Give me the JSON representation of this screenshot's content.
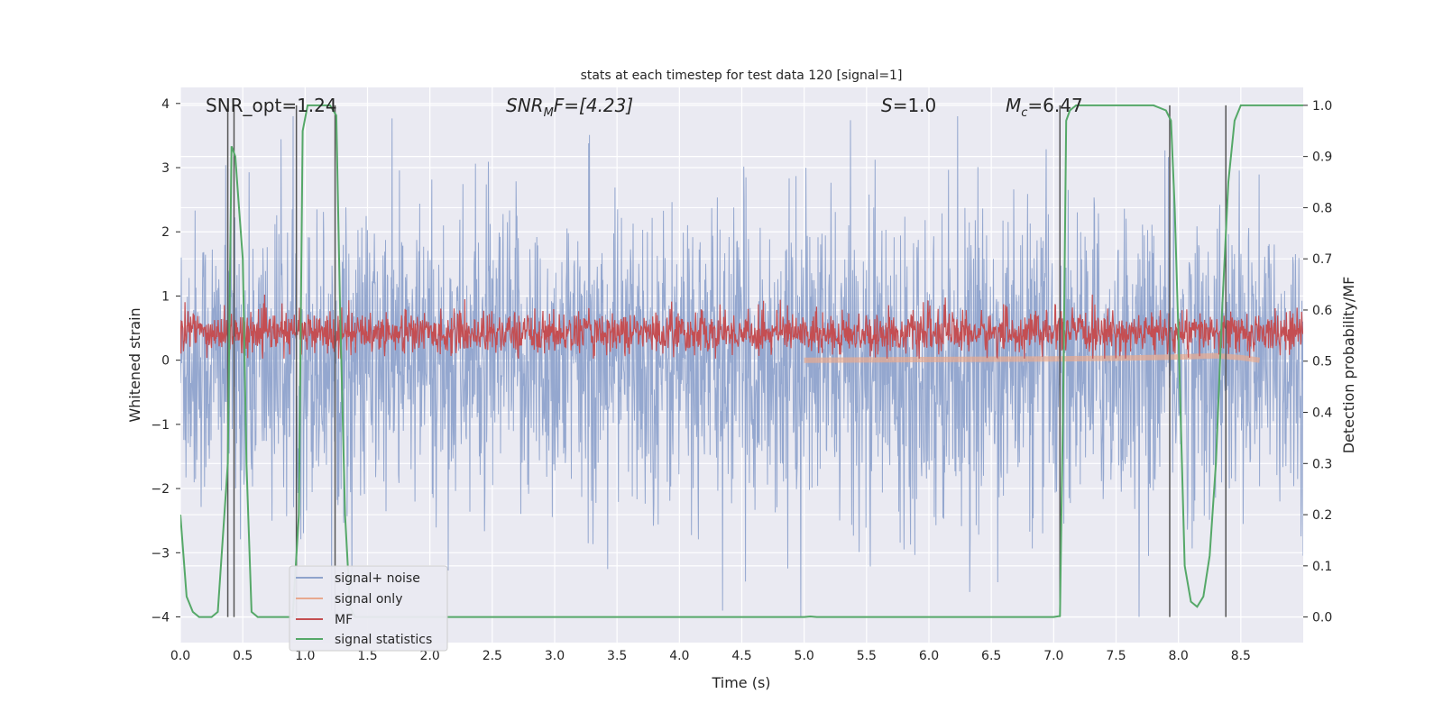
{
  "chart_data": {
    "type": "line",
    "title": "stats at each timestep for test data 120 [signal=1]",
    "xlabel": "Time (s)",
    "ylabel": "Whitened strain",
    "y2label": "Detection probability/MF",
    "xlim": [
      0.0,
      9.0
    ],
    "ylim": [
      -4.4,
      4.25
    ],
    "y2lim": [
      -0.05,
      1.035
    ],
    "xticks": [
      "0.0",
      "0.5",
      "1.0",
      "1.5",
      "2.0",
      "2.5",
      "3.0",
      "3.5",
      "4.0",
      "4.5",
      "5.0",
      "5.5",
      "6.0",
      "6.5",
      "7.0",
      "7.5",
      "8.0",
      "8.5"
    ],
    "yticks": [
      "4",
      "3",
      "2",
      "1",
      "0",
      "−1",
      "−2",
      "−3",
      "−4"
    ],
    "y2ticks": [
      "1.0",
      "0.9",
      "0.8",
      "0.7",
      "0.6",
      "0.5",
      "0.4",
      "0.3",
      "0.2",
      "0.1",
      "0.0"
    ],
    "grid": true,
    "legend_position": "lower-left",
    "annotations": {
      "snr_opt": "SNR_opt=1.24",
      "snr_mf_main": "SNR",
      "snr_mf_sub": "M",
      "snr_mf_rest": "F=[4.23]",
      "s_main": "S",
      "s_rest": "=1.0",
      "mc_main": "M",
      "mc_sub": "c",
      "mc_rest": "=6.47"
    },
    "series": [
      {
        "name": "signal+ noise",
        "color": "#8fa3cc",
        "axis": "left",
        "description": "whitened strain noise, roughly ±2.5 with spikes to ±3.5"
      },
      {
        "name": "signal only",
        "color": "#e8a98f",
        "axis": "left",
        "x": [
          5.0,
          7.0,
          7.5,
          8.0,
          8.3,
          8.5,
          8.65
        ],
        "y": [
          0.0,
          0.02,
          0.03,
          0.05,
          0.07,
          0.04,
          0.0
        ]
      },
      {
        "name": "MF",
        "color": "#c44e52",
        "axis": "right",
        "description": "matched filter output, roughly 0.5–0.6 on the right axis"
      },
      {
        "name": "signal statistics",
        "color": "#55a868",
        "axis": "right",
        "x": [
          0.0,
          0.05,
          0.1,
          0.15,
          0.2,
          0.25,
          0.3,
          0.38,
          0.41,
          0.44,
          0.47,
          0.5,
          0.53,
          0.57,
          0.62,
          0.7,
          0.8,
          0.9,
          0.95,
          0.98,
          1.02,
          1.07,
          1.15,
          1.2,
          1.25,
          1.28,
          1.32,
          1.36,
          1.4,
          1.45,
          1.5,
          2.0,
          3.0,
          4.0,
          5.0,
          5.05,
          5.1,
          5.2,
          6.0,
          7.0,
          7.05,
          7.08,
          7.1,
          7.13,
          7.18,
          7.25,
          7.5,
          7.8,
          7.9,
          7.94,
          7.97,
          8.0,
          8.05,
          8.1,
          8.15,
          8.2,
          8.25,
          8.3,
          8.35,
          8.4,
          8.45,
          8.5,
          8.6,
          8.8,
          9.0
        ],
        "y": [
          0.2,
          0.04,
          0.01,
          0.0,
          0.0,
          0.0,
          0.01,
          0.3,
          0.92,
          0.9,
          0.8,
          0.7,
          0.3,
          0.01,
          0.0,
          0.0,
          0.0,
          0.0,
          0.2,
          0.95,
          1.0,
          1.0,
          1.0,
          1.0,
          0.98,
          0.6,
          0.2,
          0.02,
          0.0,
          0.0,
          0.0,
          0.0,
          0.0,
          0.0,
          0.0,
          0.001,
          0.0,
          0.0,
          0.0,
          0.0,
          0.002,
          0.5,
          0.97,
          0.99,
          1.0,
          1.0,
          1.0,
          1.0,
          0.99,
          0.97,
          0.8,
          0.55,
          0.1,
          0.03,
          0.02,
          0.04,
          0.12,
          0.3,
          0.6,
          0.85,
          0.97,
          1.0,
          1.0,
          1.0,
          1.0
        ]
      }
    ],
    "vertical_lines_x": [
      0.38,
      0.43,
      0.93,
      1.24,
      7.05,
      7.93,
      8.38
    ],
    "colors": {
      "background": "#eaeaf2",
      "grid": "#ffffff",
      "vline": "#555555"
    }
  }
}
